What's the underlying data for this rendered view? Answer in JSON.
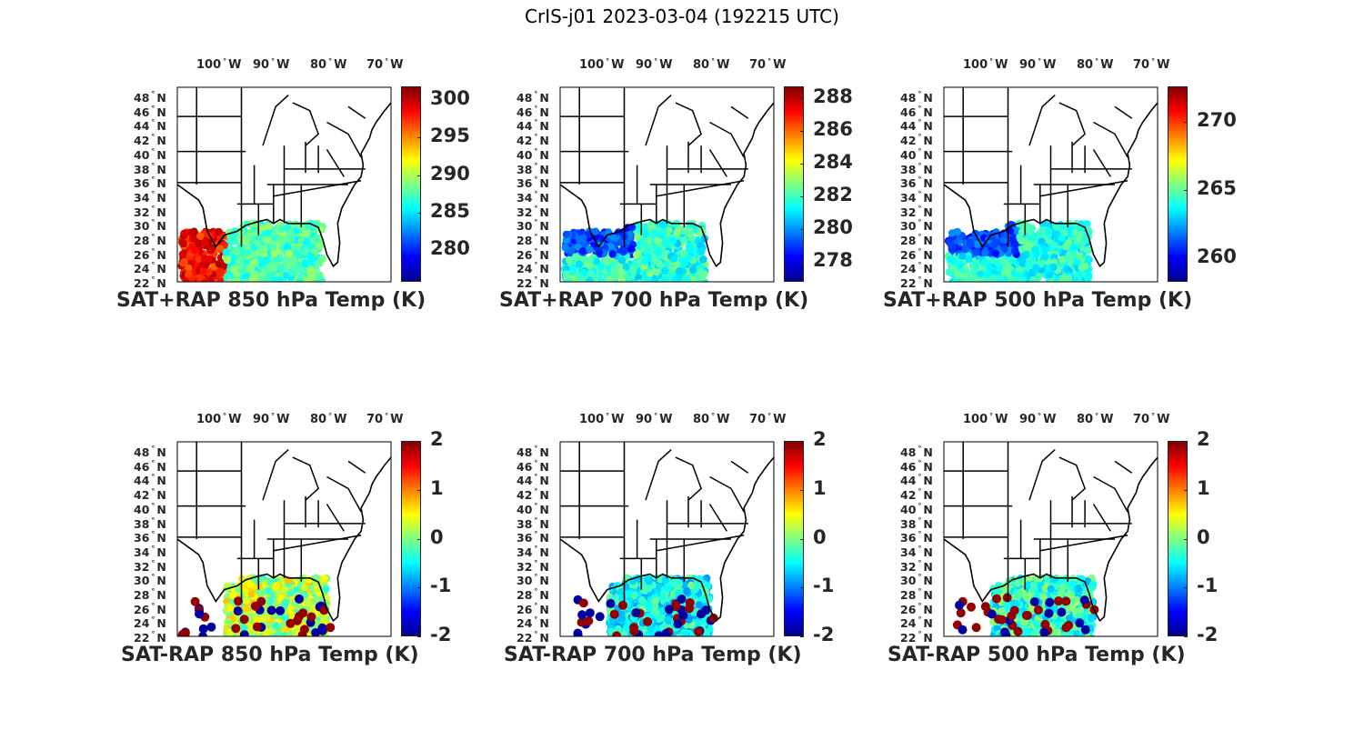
{
  "title": "CrIS-j01 2023-03-04 (192215 UTC)",
  "colormap": [
    "#00008f",
    "#0000ff",
    "#0080ff",
    "#00ffff",
    "#80ff80",
    "#ffff00",
    "#ff8000",
    "#ff0000",
    "#800000"
  ],
  "lon_labels": [
    "100",
    "90",
    "80",
    "70"
  ],
  "lon_suffix": "W",
  "lat_labels": [
    "48",
    "46",
    "44",
    "42",
    "40",
    "38",
    "36",
    "34",
    "32",
    "30",
    "28",
    "26",
    "24",
    "22"
  ],
  "lat_suffix": "N",
  "panels": [
    {
      "title": "SAT+RAP 850 hPa Temp (K)",
      "cbar_ticks": [
        "300",
        "295",
        "290",
        "285",
        "280"
      ],
      "cbar_range": [
        275.8,
        301.8
      ],
      "tick_values": [
        300,
        295,
        290,
        285,
        280
      ]
    },
    {
      "title": "SAT+RAP 700 hPa Temp (K)",
      "cbar_ticks": [
        "288",
        "286",
        "284",
        "282",
        "280",
        "278"
      ],
      "cbar_range": [
        276.8,
        288.7
      ],
      "tick_values": [
        288,
        286,
        284,
        282,
        280,
        278
      ]
    },
    {
      "title": "SAT+RAP 500 hPa Temp (K)",
      "cbar_ticks": [
        "270",
        "265",
        "260"
      ],
      "cbar_range": [
        258.3,
        272.6
      ],
      "tick_values": [
        270,
        265,
        260
      ]
    },
    {
      "title": "SAT-RAP 850 hPa Temp (K)",
      "cbar_ticks": [
        "2",
        "1",
        "0",
        "-1",
        "-2"
      ],
      "cbar_range": [
        -2,
        2
      ],
      "tick_values": [
        2,
        1,
        0,
        -1,
        -2
      ]
    },
    {
      "title": "SAT-RAP 700 hPa Temp (K)",
      "cbar_ticks": [
        "2",
        "1",
        "0",
        "-1",
        "-2"
      ],
      "cbar_range": [
        -2,
        2
      ],
      "tick_values": [
        2,
        1,
        0,
        -1,
        -2
      ]
    },
    {
      "title": "SAT-RAP 500 hPa Temp (K)",
      "cbar_ticks": [
        "2",
        "1",
        "0",
        "-1",
        "-2"
      ],
      "cbar_range": [
        -2,
        2
      ],
      "tick_values": [
        2,
        1,
        0,
        -1,
        -2
      ]
    }
  ]
}
